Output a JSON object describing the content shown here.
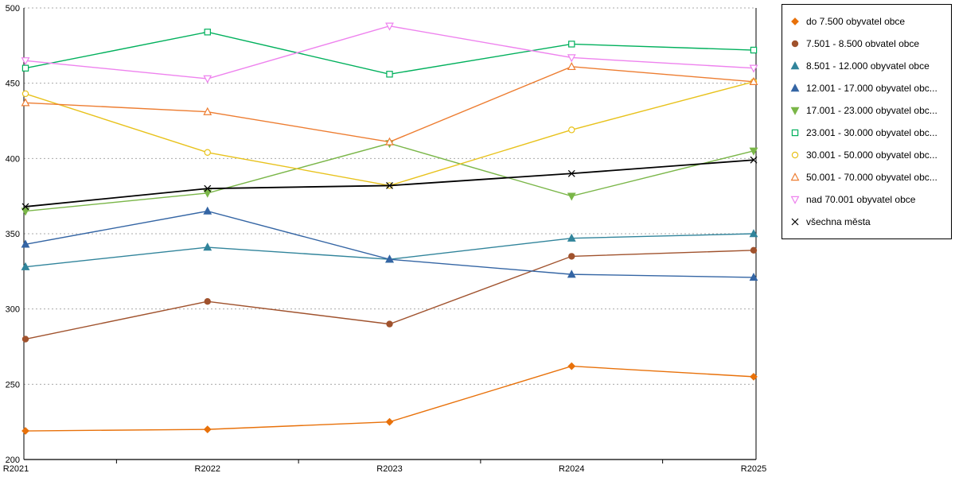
{
  "chart_data": {
    "type": "line",
    "title": "",
    "xlabel": "",
    "ylabel": "",
    "categories": [
      "R2021",
      "R2022",
      "R2023",
      "R2024",
      "R2025"
    ],
    "ylim": [
      200,
      500
    ],
    "ytick_step": 50,
    "grid": "dotted-horizontal",
    "legend_position": "right",
    "series": [
      {
        "name": "do 7.500 obyvatel obce",
        "color": "#E8710A",
        "marker": "diamond",
        "filled": true,
        "width": 1.4,
        "values": [
          219,
          220,
          225,
          262,
          255
        ]
      },
      {
        "name": "7.501 - 8.500 obvatel obce",
        "color": "#A0522D",
        "marker": "circle",
        "filled": true,
        "width": 1.4,
        "values": [
          280,
          305,
          290,
          335,
          339
        ]
      },
      {
        "name": "8.501 - 12.000 obyvatel obce",
        "color": "#31849B",
        "marker": "triangle-up",
        "filled": true,
        "width": 1.4,
        "values": [
          328,
          341,
          333,
          347,
          350
        ]
      },
      {
        "name": "12.001 - 17.000 obyvatel obc...",
        "color": "#3465A4",
        "marker": "triangle-up",
        "filled": true,
        "width": 1.4,
        "values": [
          343,
          365,
          333,
          323,
          321
        ]
      },
      {
        "name": "17.001 - 23.000 obyvatel obc...",
        "color": "#7AB648",
        "marker": "triangle-down",
        "filled": true,
        "width": 1.4,
        "values": [
          365,
          377,
          410,
          375,
          405
        ]
      },
      {
        "name": "23.001 - 30.000 obyvatel obc...",
        "color": "#00B05C",
        "marker": "square",
        "filled": false,
        "width": 1.4,
        "values": [
          460,
          484,
          456,
          476,
          472
        ]
      },
      {
        "name": "30.001 - 50.000 obyvatel obc...",
        "color": "#E8C21C",
        "marker": "circle",
        "filled": false,
        "width": 1.4,
        "values": [
          443,
          404,
          382,
          419,
          451
        ]
      },
      {
        "name": "50.001 - 70.000 obyvatel obc...",
        "color": "#ED7D31",
        "marker": "triangle-up",
        "filled": false,
        "width": 1.4,
        "values": [
          437,
          431,
          411,
          461,
          451
        ]
      },
      {
        "name": "nad 70.001 obyvatel obce",
        "color": "#EE82EE",
        "marker": "triangle-down",
        "filled": false,
        "width": 1.4,
        "values": [
          465,
          453,
          488,
          467,
          460
        ]
      },
      {
        "name": "všechna města",
        "color": "#000000",
        "marker": "x",
        "filled": false,
        "width": 1.8,
        "values": [
          368,
          380,
          382,
          390,
          399
        ]
      }
    ]
  }
}
